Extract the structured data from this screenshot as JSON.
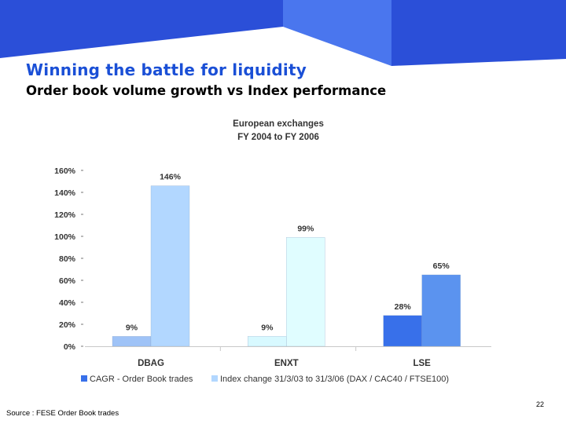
{
  "slide": {
    "title": "Winning the battle for liquidity",
    "subtitle": "Order book volume growth vs Index performance",
    "source": "Source : FESE Order Book trades",
    "page_number": "22"
  },
  "colors": {
    "brand_blue": "#1a4fd6",
    "band_blue": "#2b4fd8",
    "band_light": "#4a76ee"
  },
  "chart_data": {
    "type": "bar",
    "title": "European exchanges",
    "subtitle": "FY 2004 to FY 2006",
    "categories": [
      "DBAG",
      "ENXT",
      "LSE"
    ],
    "y_ticks": [
      "0%",
      "20%",
      "40%",
      "60%",
      "80%",
      "100%",
      "120%",
      "140%",
      "160%"
    ],
    "ylim": [
      0,
      160
    ],
    "grid": false,
    "legend_position": "bottom",
    "series": [
      {
        "name": "CAGR - Order Book trades",
        "values": [
          9,
          9,
          28
        ],
        "labels": [
          "9%",
          "9%",
          "28%"
        ],
        "colors": [
          "#9fc3f7",
          "#d8f9ff",
          "#3870ea"
        ]
      },
      {
        "name": "Index change 31/3/03 to 31/3/06 (DAX / CAC40 / FTSE100)",
        "values": [
          146,
          99,
          65
        ],
        "labels": [
          "146%",
          "99%",
          "65%"
        ],
        "colors": [
          "#b2d7ff",
          "#e0fdff",
          "#5b93ef"
        ]
      }
    ],
    "legend_colors": [
      "#3870ea",
      "#b2d7ff"
    ]
  }
}
